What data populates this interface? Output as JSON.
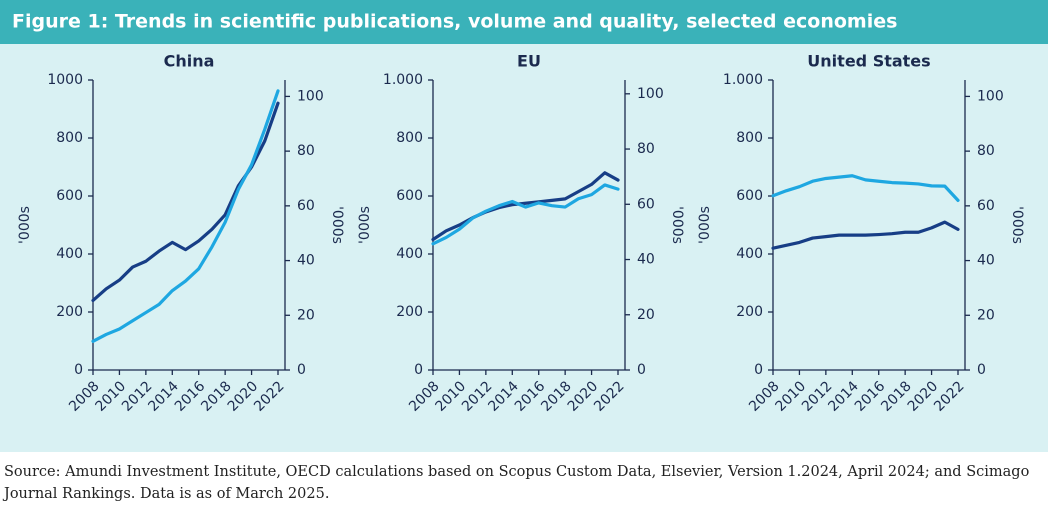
{
  "title": "Figure 1: Trends in scientific publications, volume and quality, selected economies",
  "source": "Source: Amundi Investment Institute, OECD calculations based on Scopus Custom Data, Elsevier, Version 1.2024, April 2024; and Scimago Journal Rankings. Data is as of March 2025.",
  "chart_data": [
    {
      "type": "line",
      "title": "China",
      "y_label": "'000s",
      "y2_label": "'000s",
      "x": [
        2008,
        2009,
        2010,
        2011,
        2012,
        2013,
        2014,
        2015,
        2016,
        2017,
        2018,
        2019,
        2020,
        2021,
        2022
      ],
      "xlim": [
        2008,
        2022
      ],
      "xticks": [
        2008,
        2010,
        2012,
        2014,
        2016,
        2018,
        2020,
        2022
      ],
      "ylim": [
        0,
        1000
      ],
      "yticks": [
        0,
        200,
        400,
        600,
        800,
        1000
      ],
      "y2lim": [
        0,
        106
      ],
      "y2ticks": [
        0,
        20,
        40,
        60,
        80,
        100
      ],
      "series": [
        {
          "color": "#173e86",
          "values": [
            240,
            280,
            310,
            355,
            375,
            410,
            440,
            415,
            445,
            485,
            535,
            635,
            700,
            790,
            920
          ]
        },
        {
          "color": "#1ea7e1",
          "axis": "y2",
          "values": [
            10.5,
            13,
            15,
            18,
            21,
            24,
            29,
            32.5,
            37,
            45,
            54,
            66,
            75,
            88,
            102
          ]
        }
      ]
    },
    {
      "type": "line",
      "title": "EU",
      "y_label": "'000s",
      "y2_label": "'000s",
      "x": [
        2008,
        2009,
        2010,
        2011,
        2012,
        2013,
        2014,
        2015,
        2016,
        2017,
        2018,
        2019,
        2020,
        2021,
        2022
      ],
      "xlim": [
        2008,
        2022
      ],
      "xticks": [
        2008,
        2010,
        2012,
        2014,
        2016,
        2018,
        2020,
        2022
      ],
      "ylim": [
        0,
        1000
      ],
      "yticks": [
        0,
        200,
        400,
        600,
        800,
        {
          "value": 1000,
          "label": "1.000"
        }
      ],
      "y2lim": [
        0,
        105
      ],
      "y2ticks": [
        0,
        20,
        40,
        60,
        80,
        100
      ],
      "series": [
        {
          "color": "#173e86",
          "values": [
            450,
            480,
            500,
            525,
            545,
            560,
            570,
            575,
            580,
            585,
            590,
            615,
            640,
            680,
            655
          ]
        },
        {
          "color": "#1ea7e1",
          "axis": "y2",
          "values": [
            45.7,
            48,
            51,
            55,
            57.5,
            59.5,
            61,
            59,
            60.5,
            59.5,
            59,
            62,
            63.5,
            67,
            65.5
          ]
        }
      ]
    },
    {
      "type": "line",
      "title": "United States",
      "y_label": "'000s",
      "y2_label": "'000s",
      "x": [
        2008,
        2009,
        2010,
        2011,
        2012,
        2013,
        2014,
        2015,
        2016,
        2017,
        2018,
        2019,
        2020,
        2021,
        2022
      ],
      "xlim": [
        2008,
        2022
      ],
      "xticks": [
        2008,
        2010,
        2012,
        2014,
        2016,
        2018,
        2020,
        2022
      ],
      "ylim": [
        0,
        1000
      ],
      "yticks": [
        0,
        200,
        400,
        600,
        800,
        {
          "value": 1000,
          "label": "1.000"
        }
      ],
      "y2lim": [
        0,
        106
      ],
      "y2ticks": [
        0,
        20,
        40,
        60,
        80,
        100
      ],
      "series": [
        {
          "color": "#173e86",
          "values": [
            420,
            430,
            440,
            455,
            460,
            465,
            465,
            465,
            467,
            470,
            475,
            475,
            490,
            510,
            485
          ]
        },
        {
          "color": "#1ea7e1",
          "axis": "y2",
          "values": [
            63.7,
            65.5,
            67,
            69,
            70,
            70.5,
            71,
            69.5,
            69,
            68.5,
            68.3,
            68,
            67.3,
            67.2,
            62
          ]
        }
      ]
    }
  ]
}
